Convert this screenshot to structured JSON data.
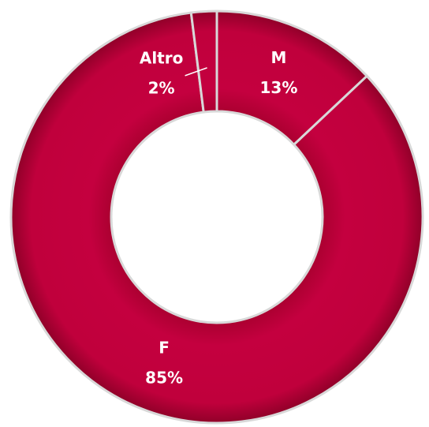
{
  "chart_data": {
    "type": "donut",
    "categories": [
      "M",
      "F",
      "Altro"
    ],
    "values": [
      13,
      85,
      2
    ],
    "value_labels": [
      "13%",
      "85%",
      "2%"
    ],
    "color": "#c0003c"
  }
}
